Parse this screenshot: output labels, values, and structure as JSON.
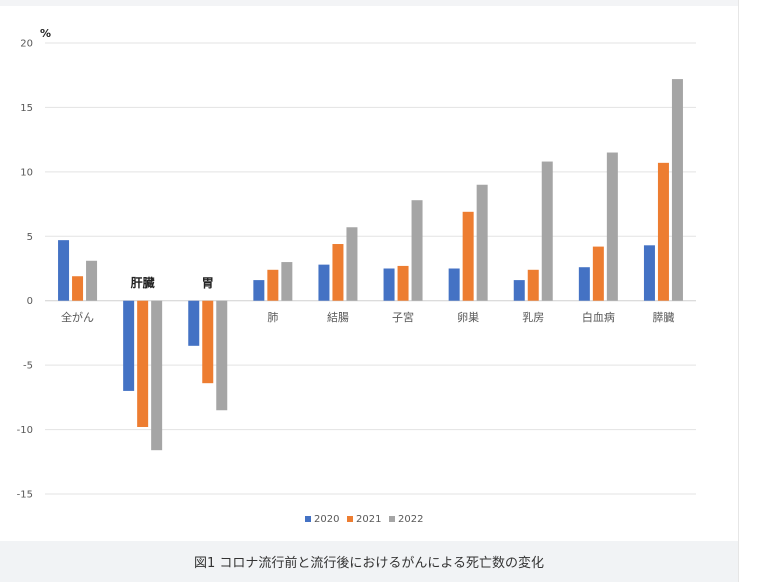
{
  "chart_data": {
    "type": "bar",
    "title": "",
    "ylabel": "%",
    "xlabel": "",
    "ylim": [
      -15,
      20
    ],
    "yticks": [
      20,
      15,
      10,
      5,
      0,
      -5,
      -10,
      -15
    ],
    "grid": true,
    "legend_position": "bottom",
    "categories": [
      "全がん",
      "肝臓",
      "胃",
      "肺",
      "結腸",
      "子宮",
      "卵巣",
      "乳房",
      "白血病",
      "膵臓"
    ],
    "bold_categories": [
      "肝臓",
      "胃"
    ],
    "series": [
      {
        "name": "2020",
        "color": "#4472c4",
        "values": [
          4.7,
          -7.0,
          -3.5,
          1.6,
          2.8,
          2.5,
          2.5,
          1.6,
          2.6,
          4.3
        ]
      },
      {
        "name": "2021",
        "color": "#ed7d31",
        "values": [
          1.9,
          -9.8,
          -6.4,
          2.4,
          4.4,
          2.7,
          6.9,
          2.4,
          4.2,
          10.7
        ]
      },
      {
        "name": "2022",
        "color": "#a5a5a5",
        "values": [
          3.1,
          -11.6,
          -8.5,
          3.0,
          5.7,
          7.8,
          9.0,
          10.8,
          11.5,
          17.2
        ]
      }
    ]
  },
  "caption": "図1 コロナ流行前と流行後におけるがんによる死亡数の変化"
}
